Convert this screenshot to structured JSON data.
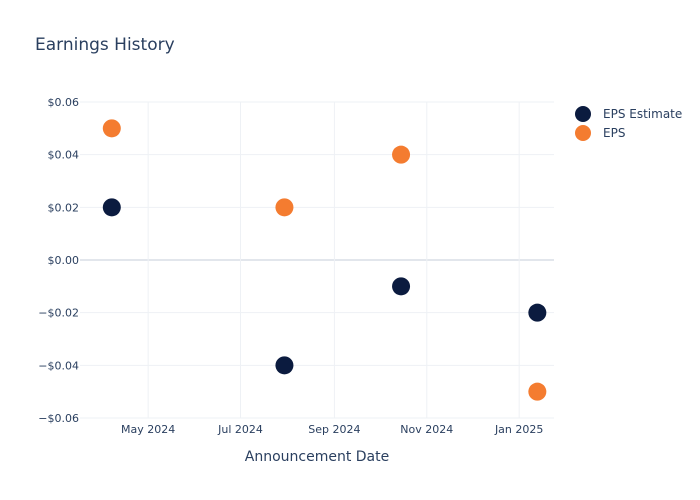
{
  "chart_data": {
    "type": "scatter",
    "title": "Earnings History",
    "xlabel": "Announcement Date",
    "ylabel": "",
    "x_ticks": [
      {
        "date": "2024-05-01",
        "label": "May 2024"
      },
      {
        "date": "2024-07-01",
        "label": "Jul 2024"
      },
      {
        "date": "2024-09-01",
        "label": "Sep 2024"
      },
      {
        "date": "2024-11-01",
        "label": "Nov 2024"
      },
      {
        "date": "2025-01-01",
        "label": "Jan 2025"
      }
    ],
    "y_ticks": [
      {
        "value": 0.06,
        "label": "$0.06"
      },
      {
        "value": 0.04,
        "label": "$0.04"
      },
      {
        "value": 0.02,
        "label": "$0.02"
      },
      {
        "value": 0.0,
        "label": "$0.00"
      },
      {
        "value": -0.02,
        "label": "−$0.02"
      },
      {
        "value": -0.04,
        "label": "−$0.04"
      },
      {
        "value": -0.06,
        "label": "−$0.06"
      }
    ],
    "xlim": [
      "2024-03-17",
      "2025-01-24"
    ],
    "ylim": [
      -0.06,
      0.06
    ],
    "grid": true,
    "legend_position": "top-right",
    "series": [
      {
        "name": "EPS Estimate",
        "color": "#0b1b3f",
        "points": [
          {
            "x": "2024-04-07",
            "y": 0.02
          },
          {
            "x": "2024-07-30",
            "y": -0.04
          },
          {
            "x": "2024-10-15",
            "y": -0.01
          },
          {
            "x": "2025-01-13",
            "y": -0.02
          }
        ]
      },
      {
        "name": "EPS",
        "color": "#f47c30",
        "points": [
          {
            "x": "2024-04-07",
            "y": 0.05
          },
          {
            "x": "2024-07-30",
            "y": 0.02
          },
          {
            "x": "2024-10-15",
            "y": 0.04
          },
          {
            "x": "2025-01-13",
            "y": -0.05
          }
        ]
      }
    ]
  }
}
